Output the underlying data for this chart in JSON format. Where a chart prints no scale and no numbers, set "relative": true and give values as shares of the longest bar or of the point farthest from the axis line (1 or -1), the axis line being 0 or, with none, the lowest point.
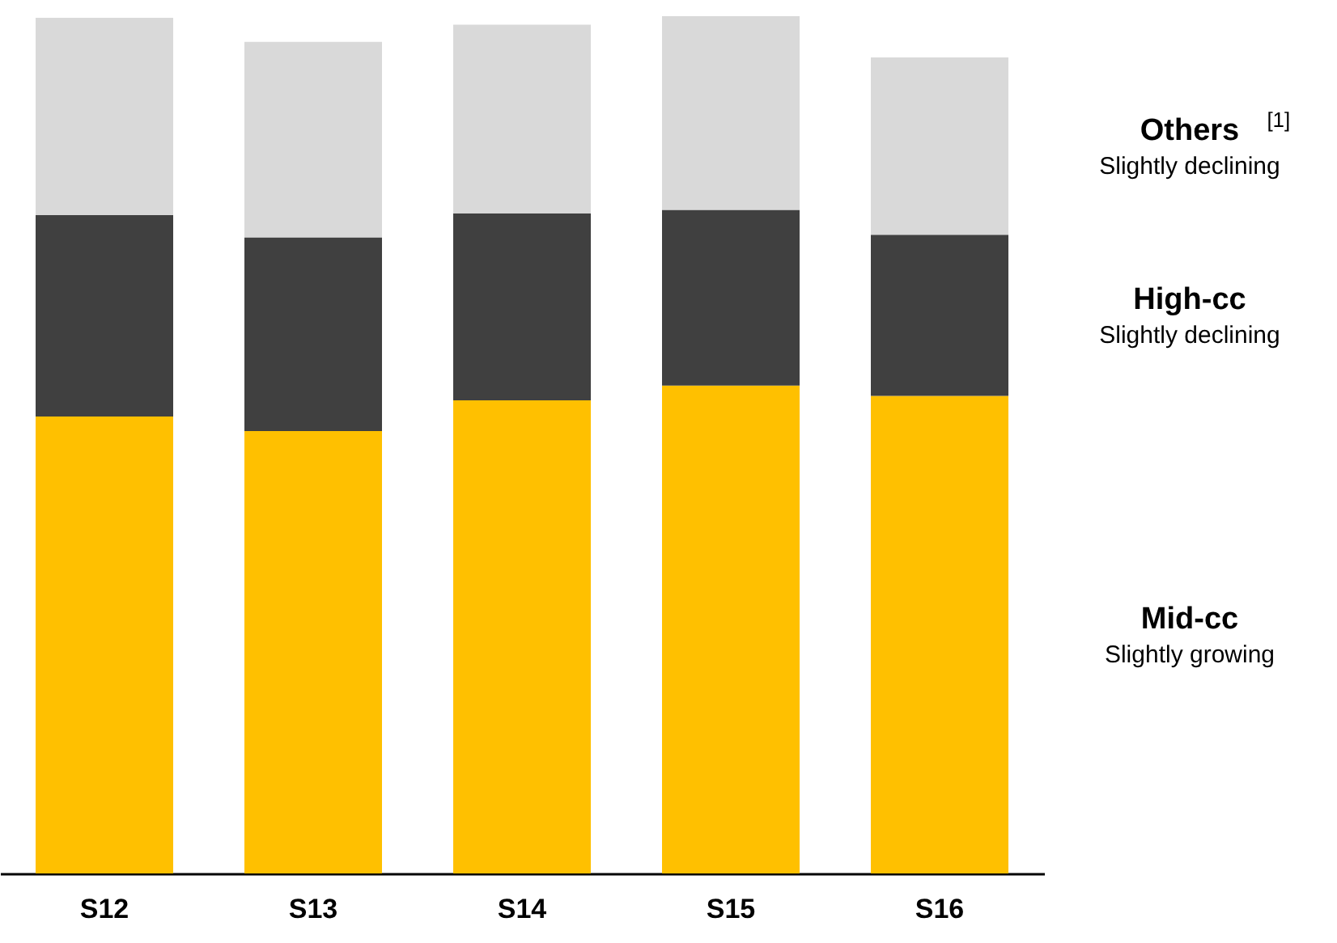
{
  "chart_data": {
    "type": "bar",
    "stacked": true,
    "relative": true,
    "categories": [
      "S12",
      "S13",
      "S14",
      "S15",
      "S16"
    ],
    "series": [
      {
        "name": "Mid-cc",
        "color": "#ffc000",
        "values": [
          0.533,
          0.516,
          0.552,
          0.569,
          0.557
        ]
      },
      {
        "name": "High-cc",
        "color": "#404040",
        "values": [
          0.235,
          0.226,
          0.218,
          0.205,
          0.188
        ]
      },
      {
        "name": "Others$^{[1]}$",
        "color": "#d9d9d9",
        "values": [
          0.23,
          0.228,
          0.22,
          0.226,
          0.207
        ]
      }
    ],
    "annotations": [
      "Slightly growing",
      "Slightly declining",
      "Slightly declining"
    ]
  }
}
